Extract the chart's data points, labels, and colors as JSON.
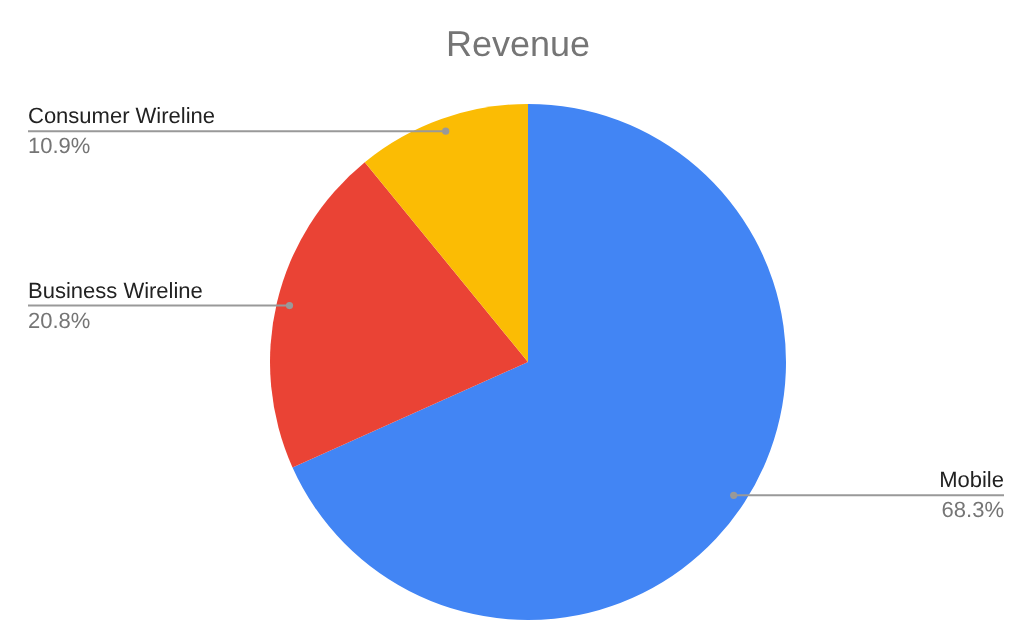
{
  "chart_data": {
    "type": "pie",
    "title": "Revenue",
    "categories": [
      "Mobile",
      "Business Wireline",
      "Consumer Wireline"
    ],
    "values": [
      68.3,
      20.8,
      10.9
    ],
    "colors": [
      "#4285f4",
      "#ea4335",
      "#fbbc04"
    ],
    "value_labels": [
      "68.3%",
      "20.8%",
      "10.9%"
    ]
  }
}
